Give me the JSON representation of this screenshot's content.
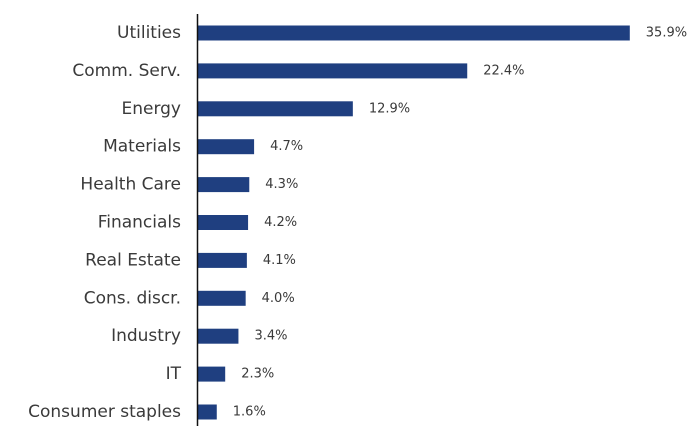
{
  "chart_data": {
    "type": "bar",
    "orientation": "horizontal",
    "categories": [
      "Utilities",
      "Comm. Serv.",
      "Energy",
      "Materials",
      "Health Care",
      "Financials",
      "Real Estate",
      "Cons. discr.",
      "Industry",
      "IT",
      "Consumer staples"
    ],
    "values": [
      35.9,
      22.4,
      12.9,
      4.7,
      4.3,
      4.2,
      4.1,
      4.0,
      3.4,
      2.3,
      1.6
    ],
    "value_labels": [
      "35.9%",
      "22.4%",
      "12.9%",
      "4.7%",
      "4.3%",
      "4.2%",
      "4.1%",
      "4.0%",
      "3.4%",
      "2.3%",
      "1.6%"
    ],
    "title": "",
    "xlabel": "",
    "ylabel": "",
    "xlim": [
      0,
      36
    ],
    "grid": false,
    "bar_color": "#1f3f80"
  }
}
